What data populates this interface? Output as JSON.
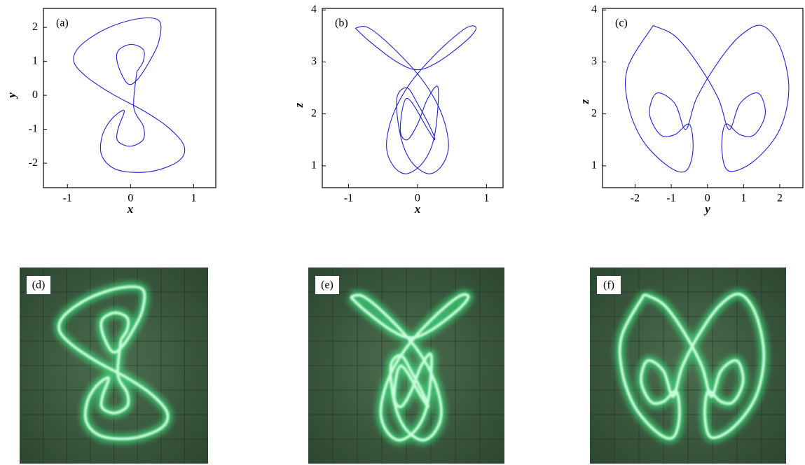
{
  "chart_data": [
    {
      "type": "line",
      "panel_label": "(a)",
      "x_label": "x",
      "y_label": "y",
      "xlim": [
        -1.38,
        1.35
      ],
      "ylim": [
        -2.72,
        2.56
      ],
      "xticks": [
        -1,
        0,
        1
      ],
      "yticks": [
        -2,
        -1,
        0,
        1,
        2
      ],
      "x": [
        0.1,
        0.2,
        0.2,
        0.0,
        -0.2,
        -0.2,
        -0.05,
        0.1,
        0.3,
        0.45,
        0.45,
        0.1,
        -0.4,
        -0.8,
        -0.9,
        -0.7,
        -0.3,
        0.2,
        0.6,
        0.85,
        0.75,
        0.3,
        -0.2,
        -0.45,
        -0.45,
        -0.3,
        -0.1,
        -0.2,
        -0.2,
        0.0,
        0.2,
        0.2,
        0.05,
        0.1
      ],
      "series": [
        {
          "color": "#1f1fd8",
          "values": [
            0.7,
            1.0,
            1.35,
            1.5,
            1.3,
            0.9,
            0.35,
            0.45,
            1.0,
            1.6,
            2.2,
            2.25,
            1.95,
            1.45,
            1.0,
            0.55,
            0.05,
            -0.45,
            -0.95,
            -1.5,
            -1.95,
            -2.25,
            -2.2,
            -1.8,
            -1.2,
            -0.7,
            -0.45,
            -1.0,
            -1.35,
            -1.5,
            -1.3,
            -0.9,
            -0.35,
            0.7
          ]
        }
      ]
    },
    {
      "type": "line",
      "panel_label": "(b)",
      "x_label": "x",
      "y_label": "z",
      "xlim": [
        -1.38,
        1.24
      ],
      "ylim": [
        0.58,
        4.03
      ],
      "xticks": [
        -1,
        0,
        1
      ],
      "yticks": [
        1,
        2,
        3,
        4
      ],
      "x": [
        -0.9,
        -0.7,
        -0.3,
        0.1,
        0.35,
        0.45,
        0.35,
        0.15,
        -0.1,
        -0.25,
        -0.3,
        -0.15,
        0.0,
        0.2,
        0.25,
        0.15,
        -0.15,
        -0.25,
        -0.15,
        0.0,
        0.15,
        0.3,
        0.25,
        0.1,
        -0.15,
        -0.35,
        -0.45,
        -0.35,
        -0.1,
        0.3,
        0.7,
        0.85,
        0.7,
        0.3,
        0.0,
        -0.3,
        -0.7,
        -0.9
      ],
      "series": [
        {
          "color": "#1f1fd8",
          "values": [
            3.65,
            3.65,
            3.2,
            2.6,
            2.0,
            1.4,
            1.0,
            0.85,
            1.1,
            1.6,
            2.3,
            2.5,
            2.2,
            1.7,
            1.5,
            1.7,
            2.3,
            1.7,
            1.5,
            1.8,
            2.3,
            2.5,
            1.6,
            1.1,
            0.85,
            1.0,
            1.4,
            2.0,
            2.6,
            3.2,
            3.65,
            3.65,
            3.4,
            3.0,
            2.85,
            3.0,
            3.4,
            3.65
          ]
        }
      ]
    },
    {
      "type": "line",
      "panel_label": "(c)",
      "x_label": "y",
      "y_label": "z",
      "xlim": [
        -2.9,
        2.64
      ],
      "ylim": [
        0.58,
        4.03
      ],
      "xticks": [
        -2,
        -1,
        0,
        1,
        2
      ],
      "yticks": [
        1,
        2,
        3,
        4
      ],
      "x": [
        -1.5,
        -2.2,
        -2.2,
        -1.8,
        -1.1,
        -0.6,
        -0.4,
        -0.5,
        -0.9,
        -1.3,
        -1.6,
        -1.4,
        -0.9,
        -0.6,
        -0.3,
        0.3,
        0.9,
        1.5,
        2.0,
        2.25,
        2.0,
        1.3,
        0.6,
        0.4,
        0.5,
        0.9,
        1.3,
        1.6,
        1.4,
        0.9,
        0.6,
        0.3,
        -0.3,
        -0.9,
        -1.5
      ],
      "series": [
        {
          "color": "#1f1fd8",
          "values": [
            3.7,
            2.9,
            2.2,
            1.5,
            1.0,
            0.9,
            1.3,
            1.8,
            1.6,
            1.6,
            2.0,
            2.4,
            2.2,
            1.7,
            2.3,
            3.0,
            3.5,
            3.7,
            3.3,
            2.5,
            1.7,
            1.1,
            0.9,
            1.3,
            1.8,
            1.6,
            1.6,
            2.0,
            2.4,
            2.2,
            1.7,
            2.3,
            3.0,
            3.5,
            3.7
          ]
        }
      ]
    }
  ],
  "photos": [
    {
      "label": "(d)"
    },
    {
      "label": "(e)"
    },
    {
      "label": "(f)"
    }
  ]
}
